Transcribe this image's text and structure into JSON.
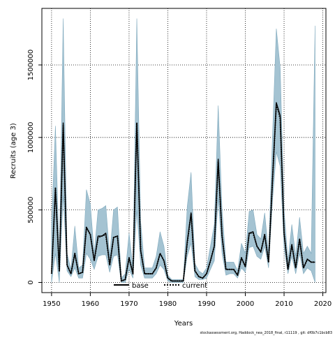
{
  "chart_data": {
    "type": "area",
    "xlabel": "Years",
    "ylabel": "Recruits (age 3)",
    "xlim": [
      1947.5,
      2020.8
    ],
    "ylim": [
      -70000,
      1890000
    ],
    "x_ticks": [
      1950,
      1960,
      1970,
      1980,
      1990,
      2000,
      2010,
      2020
    ],
    "y_ticks": [
      0,
      500000,
      1000000,
      1500000
    ],
    "y_tick_labels": [
      "0",
      "500000",
      "1000000",
      "1500000"
    ],
    "grid": true,
    "band_color": "#a4c3d2",
    "band_edge_color": "#7fa9bd",
    "years": [
      1950,
      1951,
      1952,
      1953,
      1954,
      1955,
      1956,
      1957,
      1958,
      1959,
      1960,
      1961,
      1962,
      1963,
      1964,
      1965,
      1966,
      1967,
      1968,
      1969,
      1970,
      1971,
      1972,
      1973,
      1974,
      1975,
      1976,
      1977,
      1978,
      1979,
      1980,
      1981,
      1982,
      1983,
      1984,
      1985,
      1986,
      1987,
      1988,
      1989,
      1990,
      1991,
      1992,
      1993,
      1994,
      1995,
      1996,
      1997,
      1998,
      1999,
      2000,
      2001,
      2002,
      2003,
      2004,
      2005,
      2006,
      2007,
      2008,
      2009,
      2010,
      2011,
      2012,
      2013,
      2014,
      2015,
      2016,
      2017,
      2018
    ],
    "band_upper": [
      400000,
      1080000,
      150000,
      1820000,
      200000,
      90000,
      390000,
      100000,
      120000,
      640000,
      540000,
      200000,
      500000,
      510000,
      530000,
      180000,
      500000,
      520000,
      30000,
      60000,
      340000,
      100000,
      1820000,
      420000,
      100000,
      100000,
      100000,
      180000,
      350000,
      250000,
      50000,
      20000,
      20000,
      20000,
      20000,
      520000,
      760000,
      130000,
      80000,
      60000,
      100000,
      250000,
      400000,
      1220000,
      500000,
      140000,
      140000,
      140000,
      80000,
      270000,
      200000,
      490000,
      500000,
      330000,
      300000,
      480000,
      200000,
      1000000,
      1750000,
      1480000,
      500000,
      150000,
      400000,
      180000,
      450000,
      200000,
      250000,
      200000,
      1770000
    ],
    "band_lower": [
      0,
      200000,
      0,
      600000,
      80000,
      40000,
      100000,
      30000,
      30000,
      200000,
      160000,
      90000,
      180000,
      190000,
      190000,
      70000,
      180000,
      190000,
      0,
      0,
      90000,
      30000,
      500000,
      120000,
      30000,
      30000,
      30000,
      60000,
      120000,
      90000,
      10000,
      0,
      0,
      0,
      0,
      180000,
      270000,
      40000,
      20000,
      20000,
      30000,
      90000,
      150000,
      580000,
      200000,
      50000,
      60000,
      60000,
      30000,
      100000,
      70000,
      240000,
      250000,
      180000,
      160000,
      250000,
      100000,
      560000,
      900000,
      800000,
      240000,
      60000,
      180000,
      60000,
      200000,
      60000,
      100000,
      80000,
      0
    ],
    "series": [
      {
        "name": "base",
        "color": "#000000",
        "style": "solid",
        "values": [
          60000,
          650000,
          80000,
          1100000,
          120000,
          60000,
          200000,
          60000,
          70000,
          380000,
          330000,
          150000,
          320000,
          320000,
          340000,
          120000,
          310000,
          320000,
          10000,
          20000,
          170000,
          60000,
          1100000,
          220000,
          60000,
          60000,
          60000,
          100000,
          200000,
          150000,
          30000,
          10000,
          10000,
          10000,
          10000,
          280000,
          480000,
          80000,
          40000,
          30000,
          60000,
          150000,
          250000,
          850000,
          320000,
          90000,
          90000,
          90000,
          50000,
          170000,
          110000,
          340000,
          350000,
          250000,
          210000,
          330000,
          140000,
          700000,
          1240000,
          1150000,
          340000,
          90000,
          260000,
          100000,
          300000,
          100000,
          160000,
          140000,
          140000
        ]
      },
      {
        "name": "current",
        "color": "#000000",
        "style": "dotted",
        "values": [
          60000,
          650000,
          80000,
          1080000,
          120000,
          60000,
          200000,
          60000,
          70000,
          380000,
          330000,
          150000,
          310000,
          320000,
          330000,
          120000,
          310000,
          320000,
          10000,
          20000,
          170000,
          60000,
          1100000,
          220000,
          60000,
          60000,
          60000,
          100000,
          200000,
          150000,
          30000,
          10000,
          10000,
          10000,
          10000,
          270000,
          470000,
          80000,
          40000,
          30000,
          60000,
          150000,
          250000,
          830000,
          320000,
          90000,
          90000,
          90000,
          50000,
          170000,
          110000,
          340000,
          340000,
          250000,
          210000,
          330000,
          140000,
          700000,
          1230000,
          1130000,
          340000,
          90000,
          260000,
          100000,
          300000,
          100000,
          160000,
          140000,
          140000
        ]
      }
    ],
    "legend": {
      "placement": "bottom-center",
      "items": [
        "base",
        "current"
      ]
    },
    "footer": "stockassessment.org, Haddock_nea_2018_final, r11119 , git: df0b7c1bcb83"
  }
}
